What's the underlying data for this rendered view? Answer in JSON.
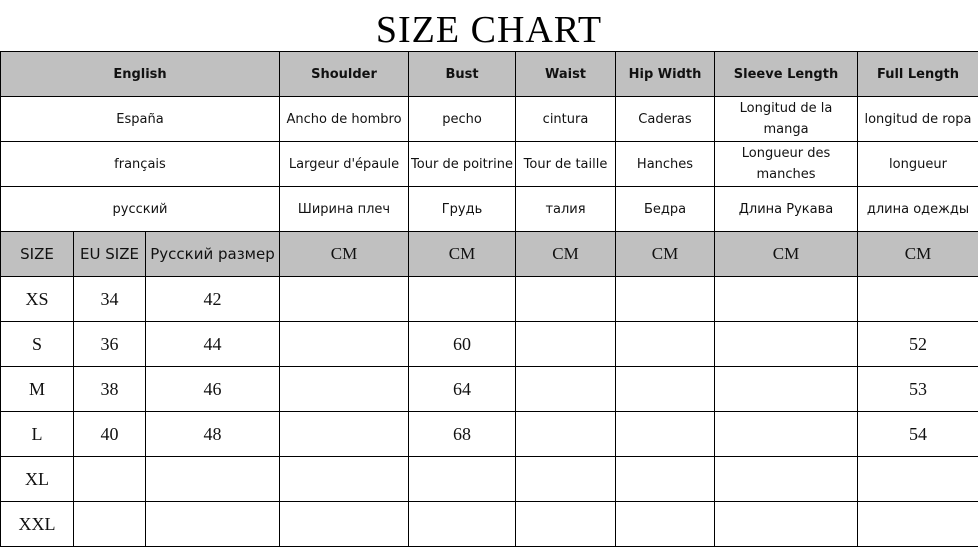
{
  "title": "SIZE CHART",
  "header": {
    "english": "English",
    "columns": [
      "Shoulder",
      "Bust",
      "Waist",
      "Hip Width",
      "Sleeve Length",
      "Full Length"
    ]
  },
  "translations": [
    {
      "language": "España",
      "values": [
        "Ancho de hombro",
        "pecho",
        "cintura",
        "Caderas",
        "Longitud de la manga",
        "longitud de ropa"
      ]
    },
    {
      "language": "français",
      "values": [
        "Largeur d'épaule",
        "Tour de poitrine",
        "Tour de taille",
        "Hanches",
        "Longueur des manches",
        "longueur"
      ]
    },
    {
      "language": "русский",
      "values": [
        "Ширина плеч",
        "Грудь",
        "талия",
        "Бедра",
        "Длина Рукава",
        "длина одежды"
      ]
    }
  ],
  "subheader": {
    "size": "SIZE",
    "eu_size": "EU SIZE",
    "ru_size": "Русский размер",
    "units": [
      "CM",
      "CM",
      "CM",
      "CM",
      "CM",
      "CM"
    ]
  },
  "rows": [
    {
      "size": "XS",
      "eu": "34",
      "ru": "42",
      "values": [
        "",
        "",
        "",
        "",
        "",
        ""
      ]
    },
    {
      "size": "S",
      "eu": "36",
      "ru": "44",
      "values": [
        "",
        "60",
        "",
        "",
        "",
        "52"
      ]
    },
    {
      "size": "M",
      "eu": "38",
      "ru": "46",
      "values": [
        "",
        "64",
        "",
        "",
        "",
        "53"
      ]
    },
    {
      "size": "L",
      "eu": "40",
      "ru": "48",
      "values": [
        "",
        "68",
        "",
        "",
        "",
        "54"
      ]
    },
    {
      "size": "XL",
      "eu": "",
      "ru": "",
      "values": [
        "",
        "",
        "",
        "",
        "",
        ""
      ]
    },
    {
      "size": "XXL",
      "eu": "",
      "ru": "",
      "values": [
        "",
        "",
        "",
        "",
        "",
        ""
      ]
    }
  ]
}
